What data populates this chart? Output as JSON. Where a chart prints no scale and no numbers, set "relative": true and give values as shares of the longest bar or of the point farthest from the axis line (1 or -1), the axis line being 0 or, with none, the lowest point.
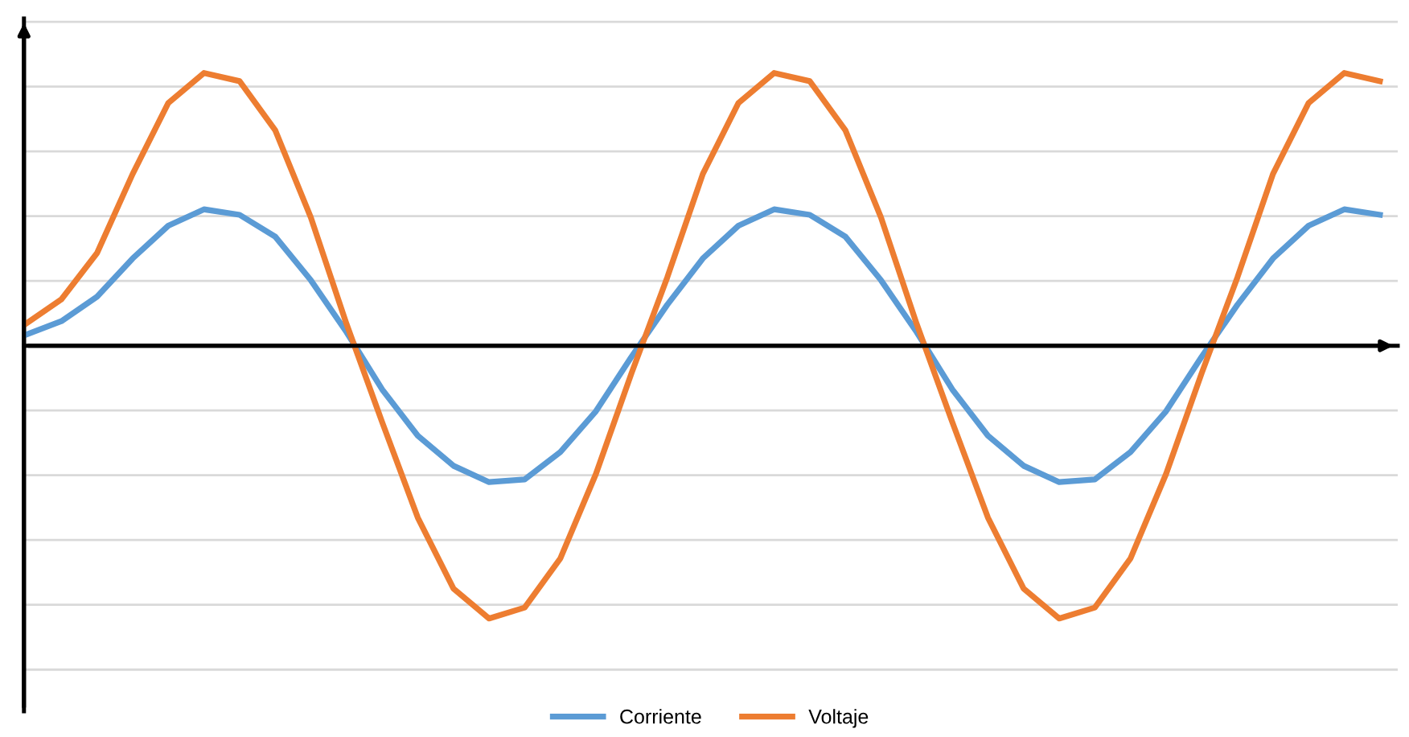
{
  "chart_data": {
    "type": "line",
    "relative": true,
    "grid": true,
    "legend": "bottom",
    "marker": "none",
    "line_style": "solid",
    "categories": [
      null,
      null,
      null,
      null,
      null,
      null,
      null,
      null,
      null,
      null,
      null,
      null,
      null,
      null,
      null,
      null,
      null,
      null,
      null,
      null,
      null,
      null,
      null,
      null,
      null,
      null,
      null,
      null,
      null,
      null,
      null,
      null,
      null,
      null,
      null,
      null,
      null,
      null,
      null
    ],
    "series": [
      {
        "name": "Corriente",
        "color": "#5b9bd5",
        "values": [
          0.04,
          0.09,
          0.18,
          0.32,
          0.44,
          0.5,
          0.48,
          0.4,
          0.24,
          0.05,
          -0.16,
          -0.33,
          -0.44,
          -0.5,
          -0.49,
          -0.39,
          -0.24,
          -0.04,
          0.15,
          0.32,
          0.44,
          0.5,
          0.48,
          0.4,
          0.24,
          0.05,
          -0.16,
          -0.33,
          -0.44,
          -0.5,
          -0.49,
          -0.39,
          -0.24,
          -0.04,
          0.15,
          0.32,
          0.44,
          0.5,
          0.48
        ]
      },
      {
        "name": "Voltaje",
        "color": "#ed7d31",
        "values": [
          0.08,
          0.17,
          0.34,
          0.63,
          0.89,
          1.0,
          0.97,
          0.79,
          0.47,
          0.08,
          -0.28,
          -0.63,
          -0.89,
          -1.0,
          -0.96,
          -0.78,
          -0.47,
          -0.1,
          0.25,
          0.63,
          0.89,
          1.0,
          0.97,
          0.79,
          0.47,
          0.08,
          -0.28,
          -0.63,
          -0.89,
          -1.0,
          -0.96,
          -0.78,
          -0.47,
          -0.1,
          0.25,
          0.63,
          0.89,
          1.0,
          0.97
        ]
      }
    ]
  }
}
